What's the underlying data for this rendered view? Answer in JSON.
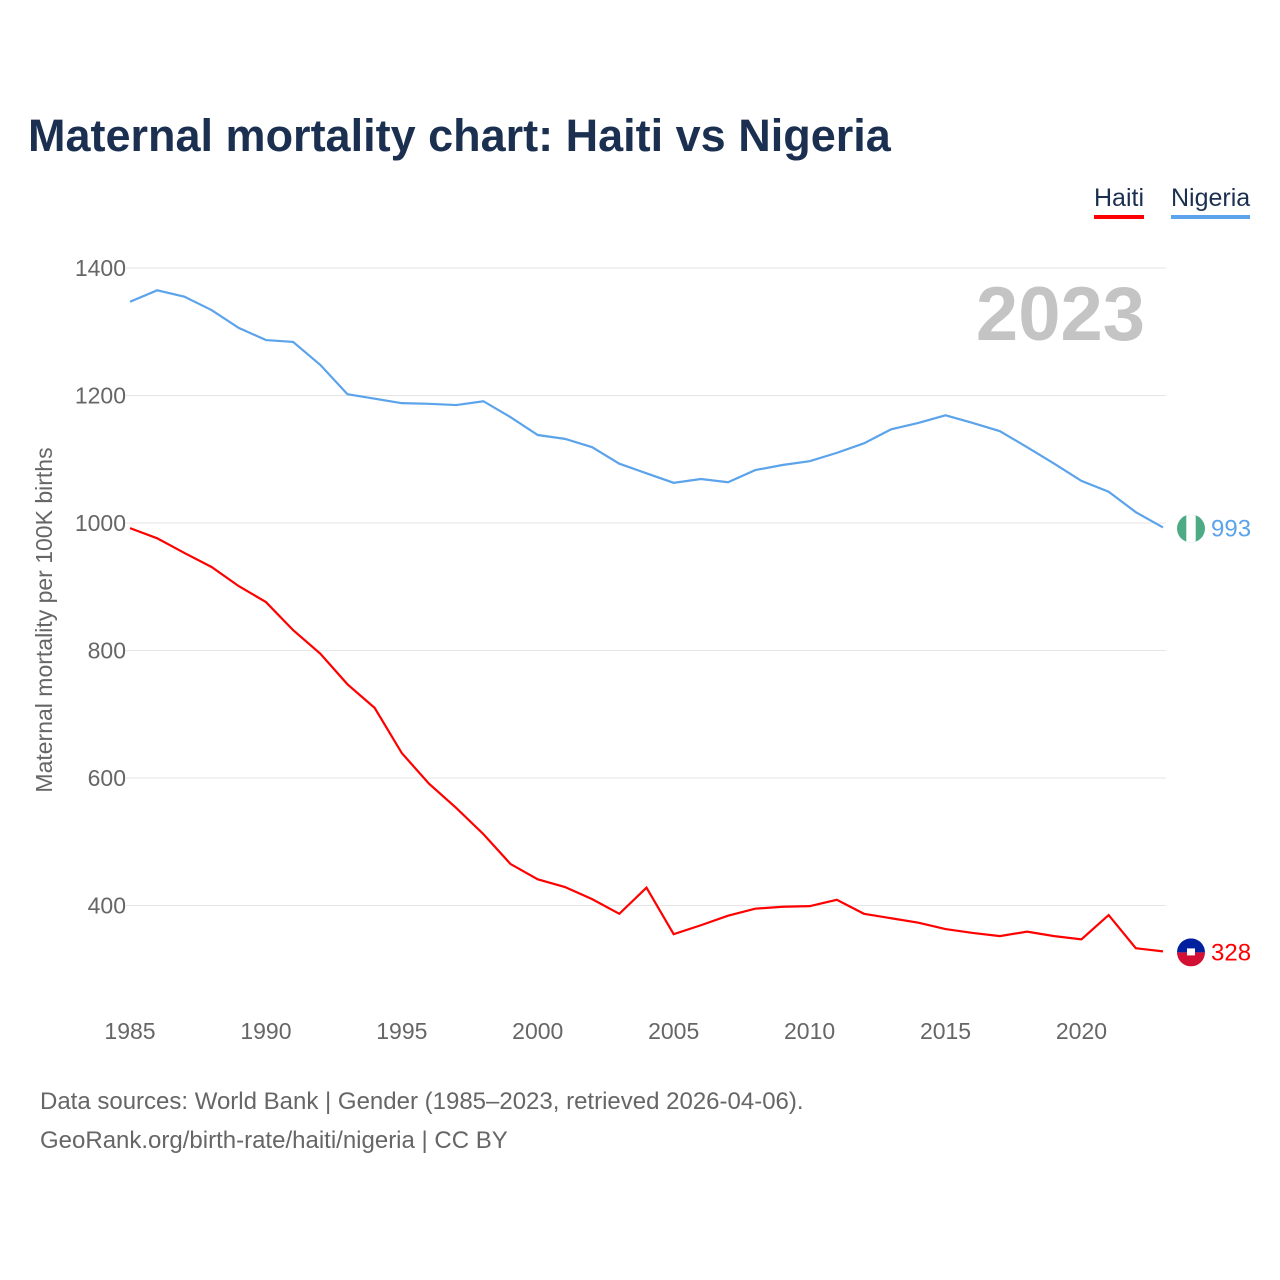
{
  "chart_data": {
    "type": "line",
    "title": "Maternal mortality chart: Haiti vs Nigeria",
    "xlabel": "",
    "ylabel": "Maternal mortality per 100K births",
    "year_label": "2023",
    "xlim": [
      1985,
      2023
    ],
    "ylim": [
      200,
      1400
    ],
    "x_ticks": [
      1985,
      1990,
      1995,
      2000,
      2005,
      2010,
      2015,
      2020
    ],
    "y_ticks": [
      400,
      600,
      800,
      1000,
      1200,
      1400
    ],
    "grid": true,
    "legend_position": "top-right",
    "x": [
      1985,
      1986,
      1987,
      1988,
      1989,
      1990,
      1991,
      1992,
      1993,
      1994,
      1995,
      1996,
      1997,
      1998,
      1999,
      2000,
      2001,
      2002,
      2003,
      2004,
      2005,
      2006,
      2007,
      2008,
      2009,
      2010,
      2011,
      2012,
      2013,
      2014,
      2015,
      2016,
      2017,
      2018,
      2019,
      2020,
      2021,
      2022,
      2023
    ],
    "series": [
      {
        "name": "Haiti",
        "color": "#ff0000",
        "end_label": "328",
        "values": [
          992,
          976,
          953,
          931,
          901,
          876,
          832,
          795,
          747,
          710,
          639,
          591,
          553,
          512,
          465,
          441,
          429,
          410,
          387,
          428,
          355,
          369,
          384,
          395,
          398,
          399,
          409,
          387,
          380,
          373,
          363,
          357,
          352,
          359,
          352,
          347,
          385,
          333,
          328
        ]
      },
      {
        "name": "Nigeria",
        "color": "#5ba3ea",
        "end_label": "993",
        "values": [
          1347,
          1365,
          1355,
          1334,
          1306,
          1287,
          1284,
          1248,
          1202,
          1195,
          1188,
          1187,
          1185,
          1191,
          1166,
          1138,
          1132,
          1119,
          1093,
          1078,
          1063,
          1069,
          1064,
          1083,
          1091,
          1097,
          1110,
          1125,
          1147,
          1157,
          1169,
          1157,
          1144,
          1119,
          1093,
          1066,
          1049,
          1017,
          993
        ]
      }
    ]
  },
  "footer": {
    "line1": "Data sources: World Bank | Gender (1985–2023, retrieved 2026-04-06).",
    "line2": "GeoRank.org/birth-rate/haiti/nigeria | CC BY"
  }
}
